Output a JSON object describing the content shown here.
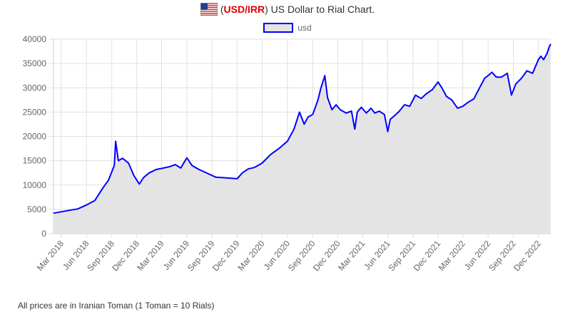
{
  "header": {
    "pair": "USD/IRR",
    "text": "US Dollar to Rial Chart."
  },
  "footer_note": "All prices are in Iranian Toman (1 Toman = 10 Rials)",
  "colors": {
    "line": "#0000ff",
    "fill": "#e4e4e4",
    "grid": "#e0e0e0",
    "pair": "#e00000"
  },
  "chart_data": {
    "type": "area",
    "title": "",
    "xlabel": "",
    "ylabel": "",
    "ylim": [
      0,
      40000
    ],
    "yticks": [
      0,
      5000,
      10000,
      15000,
      20000,
      25000,
      30000,
      35000,
      40000
    ],
    "xticks": [
      "Mar 2018",
      "Jun 2018",
      "Sep 2018",
      "Dec 2018",
      "Mar 2019",
      "Jun 2019",
      "Sep 2019",
      "Dec 2019",
      "Mar 2020",
      "Jun 2020",
      "Sep 2020",
      "Dec 2020",
      "Mar 2021",
      "Jun 2021",
      "Sep 2021",
      "Dec 2021",
      "Mar 2022",
      "Jun 2022",
      "Sep 2022",
      "Dec 2022"
    ],
    "grid": true,
    "legend": "top-center",
    "series": [
      {
        "name": "usd",
        "x": [
          "2018-02-01",
          "2018-03-01",
          "2018-04-01",
          "2018-05-01",
          "2018-06-01",
          "2018-07-01",
          "2018-08-01",
          "2018-08-20",
          "2018-09-10",
          "2018-09-15",
          "2018-09-25",
          "2018-10-10",
          "2018-11-01",
          "2018-11-20",
          "2018-12-10",
          "2018-12-25",
          "2019-01-15",
          "2019-02-10",
          "2019-03-01",
          "2019-04-01",
          "2019-04-20",
          "2019-05-10",
          "2019-06-01",
          "2019-06-20",
          "2019-07-15",
          "2019-08-15",
          "2019-09-15",
          "2019-10-15",
          "2019-11-10",
          "2019-12-01",
          "2019-12-20",
          "2020-01-10",
          "2020-02-01",
          "2020-03-01",
          "2020-04-01",
          "2020-05-01",
          "2020-06-01",
          "2020-06-25",
          "2020-07-15",
          "2020-08-01",
          "2020-08-15",
          "2020-09-01",
          "2020-09-20",
          "2020-10-01",
          "2020-10-15",
          "2020-10-25",
          "2020-11-10",
          "2020-11-25",
          "2020-12-10",
          "2021-01-01",
          "2021-01-20",
          "2021-02-01",
          "2021-02-10",
          "2021-02-25",
          "2021-03-15",
          "2021-04-01",
          "2021-04-15",
          "2021-05-01",
          "2021-05-20",
          "2021-06-01",
          "2021-06-10",
          "2021-06-20",
          "2021-07-10",
          "2021-08-01",
          "2021-08-20",
          "2021-09-10",
          "2021-10-01",
          "2021-10-20",
          "2021-11-10",
          "2021-12-01",
          "2021-12-15",
          "2022-01-01",
          "2022-01-20",
          "2022-02-10",
          "2022-03-01",
          "2022-03-20",
          "2022-04-10",
          "2022-05-01",
          "2022-05-20",
          "2022-06-01",
          "2022-06-15",
          "2022-07-01",
          "2022-07-20",
          "2022-08-10",
          "2022-08-25",
          "2022-09-10",
          "2022-10-01",
          "2022-10-20",
          "2022-11-10",
          "2022-12-01",
          "2022-12-10",
          "2022-12-20",
          "2023-01-01",
          "2023-01-10",
          "2023-01-15"
        ],
        "values": [
          4200,
          4500,
          4800,
          5100,
          5900,
          6800,
          9500,
          11000,
          14000,
          19000,
          15000,
          15500,
          14500,
          12000,
          10200,
          11500,
          12500,
          13200,
          13400,
          13800,
          14200,
          13500,
          15600,
          14000,
          13200,
          12400,
          11600,
          11500,
          11400,
          11300,
          12500,
          13300,
          13600,
          14500,
          16300,
          17500,
          19000,
          21500,
          25000,
          22500,
          24000,
          24500,
          27500,
          30000,
          32500,
          28000,
          25500,
          26500,
          25500,
          24800,
          25200,
          21500,
          25000,
          26000,
          24800,
          25800,
          24800,
          25200,
          24500,
          21000,
          23500,
          24000,
          25000,
          26500,
          26200,
          28500,
          27800,
          28800,
          29600,
          31200,
          30000,
          28200,
          27500,
          25800,
          26200,
          27000,
          27700,
          30000,
          32000,
          32500,
          33200,
          32200,
          32200,
          33000,
          28500,
          30800,
          32000,
          33500,
          33000,
          35800,
          36500,
          35800,
          37000,
          38500,
          39000
        ]
      }
    ]
  }
}
